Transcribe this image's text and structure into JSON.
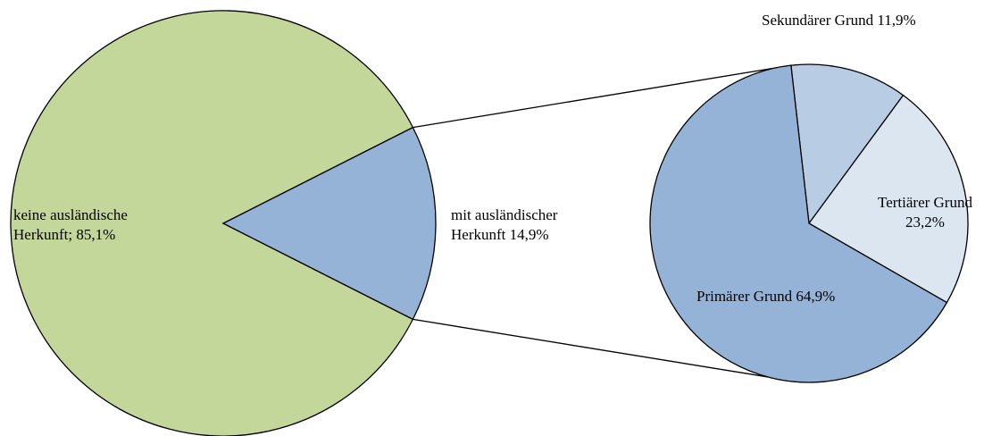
{
  "chart_data": [
    {
      "type": "pie",
      "slices": [
        {
          "label": "keine ausländische Herkunft; 85,1%",
          "label_lines": [
            "keine ausländische",
            "Herkunft; 85,1%"
          ],
          "value": 85.1,
          "color": "#c4d79b"
        },
        {
          "label": "mit ausländischer Herkunft 14,9%",
          "label_lines": [
            "mit ausländischer",
            "Herkunft  14,9%"
          ],
          "value": 14.9,
          "color": "#95b3d7"
        }
      ]
    },
    {
      "type": "pie",
      "slices": [
        {
          "label": "Sekundärer Grund 11,9%",
          "label_lines": [
            "Sekundärer Grund 11,9%"
          ],
          "value": 11.9,
          "color": "#b8cce4"
        },
        {
          "label": "Tertiärer Grund 23,2%",
          "label_lines": [
            "Tertiärer Grund",
            "23,2%"
          ],
          "value": 23.2,
          "color": "#dce6f1"
        },
        {
          "label": "Primärer Grund 64,9%",
          "label_lines": [
            "Primärer Grund 64,9%"
          ],
          "value": 64.9,
          "color": "#95b3d7"
        }
      ]
    }
  ]
}
